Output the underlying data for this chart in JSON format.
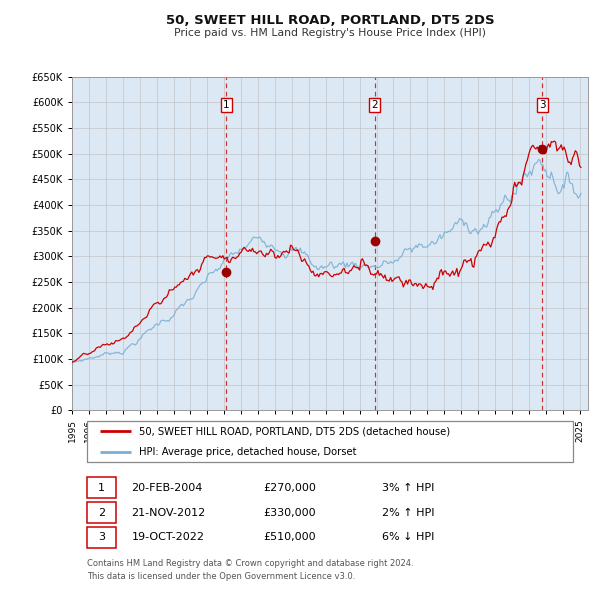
{
  "title": "50, SWEET HILL ROAD, PORTLAND, DT5 2DS",
  "subtitle": "Price paid vs. HM Land Registry's House Price Index (HPI)",
  "hpi_label": "HPI: Average price, detached house, Dorset",
  "price_label": "50, SWEET HILL ROAD, PORTLAND, DT5 2DS (detached house)",
  "footer1": "Contains HM Land Registry data © Crown copyright and database right 2024.",
  "footer2": "This data is licensed under the Open Government Licence v3.0.",
  "sales": [
    {
      "num": 1,
      "date": "20-FEB-2004",
      "price": 270000,
      "pct": "3%",
      "dir": "↑"
    },
    {
      "num": 2,
      "date": "21-NOV-2012",
      "price": 330000,
      "pct": "2%",
      "dir": "↑"
    },
    {
      "num": 3,
      "date": "19-OCT-2022",
      "price": 510000,
      "pct": "6%",
      "dir": "↓"
    }
  ],
  "sale_years": [
    2004.13,
    2012.89,
    2022.8
  ],
  "sale_prices": [
    270000,
    330000,
    510000
  ],
  "ylim": [
    0,
    650000
  ],
  "yticks": [
    0,
    50000,
    100000,
    150000,
    200000,
    250000,
    300000,
    350000,
    400000,
    450000,
    500000,
    550000,
    600000,
    650000
  ],
  "bg_color": "#dce9f5",
  "red_line_color": "#cc0000",
  "blue_line_color": "#7aaed4",
  "vline_color": "#cc0000",
  "grid_color": "#bbbbbb",
  "sale_dot_color": "#990000"
}
